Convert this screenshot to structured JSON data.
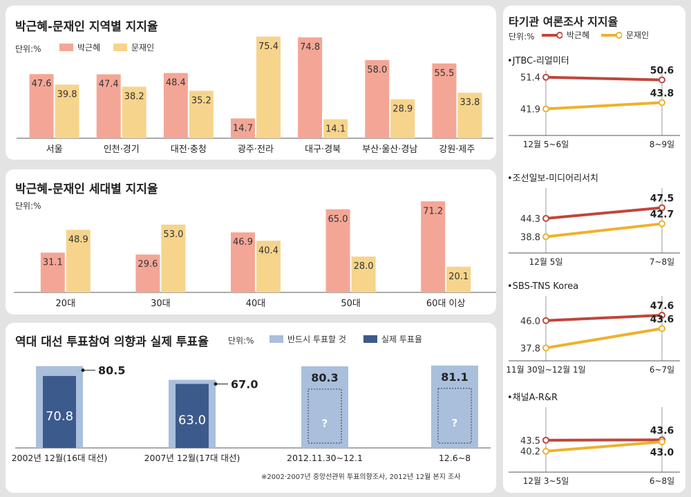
{
  "colors": {
    "park": "#f4a696",
    "moon": "#f6d48c",
    "park_line": "#c0463a",
    "moon_line": "#efb12a",
    "intent": "#a9bfdc",
    "actual": "#3d5a8c"
  },
  "regional": {
    "title": "박근혜-문재인 지역별 지지율",
    "unit": "단위:%",
    "legend": [
      "박근혜",
      "문재인"
    ]
  },
  "age": {
    "title": "박근혜-문재인 세대별 지지율",
    "unit": "단위:%"
  },
  "turnout": {
    "title": "역대 대선 투표참여 의향과 실제 투표율",
    "unit": "단위:%",
    "legend": [
      "반드시 투표할 것",
      "실제 투표율"
    ],
    "unknown_mark": "?",
    "note": "※2002·2007년 중앙선관위 투표의향조사, 2012년 12월 본지 조사"
  },
  "side": {
    "title": "타기관 여론조사 지지율",
    "unit": "단위:%",
    "legend": [
      "박근혜",
      "문재인"
    ]
  },
  "chart_data": [
    {
      "type": "bar",
      "title": "박근혜-문재인 지역별 지지율",
      "categories": [
        "서울",
        "인천·경기",
        "대전·충청",
        "광주·전라",
        "대구·경북",
        "부산·울산·경남",
        "강원·제주"
      ],
      "series": [
        {
          "name": "박근혜",
          "values": [
            47.6,
            47.4,
            48.4,
            14.7,
            74.8,
            58.0,
            55.5
          ]
        },
        {
          "name": "문재인",
          "values": [
            39.8,
            38.2,
            35.2,
            75.4,
            14.1,
            28.9,
            33.8
          ]
        }
      ],
      "ylim": [
        0,
        80
      ]
    },
    {
      "type": "bar",
      "title": "박근혜-문재인 세대별 지지율",
      "categories": [
        "20대",
        "30대",
        "40대",
        "50대",
        "60대 이상"
      ],
      "series": [
        {
          "name": "박근혜",
          "values": [
            31.1,
            29.6,
            46.9,
            65.0,
            71.2
          ]
        },
        {
          "name": "문재인",
          "values": [
            48.9,
            53.0,
            40.4,
            28.0,
            20.1
          ]
        }
      ],
      "ylim": [
        0,
        80
      ]
    },
    {
      "type": "bar",
      "title": "역대 대선 투표참여 의향과 실제 투표율",
      "categories": [
        "2002년 12월(16대 대선)",
        "2007년 12월(17대 대선)",
        "2012.11.30~12.1",
        "12.6~8"
      ],
      "series": [
        {
          "name": "반드시 투표할 것",
          "values": [
            80.5,
            67.0,
            80.3,
            81.1
          ]
        },
        {
          "name": "실제 투표율",
          "values": [
            70.8,
            63.0,
            null,
            null
          ]
        }
      ],
      "ylim": [
        0,
        85
      ]
    },
    {
      "type": "line",
      "title": "JTBC-리얼미터",
      "x": [
        "12월 5~6일",
        "8~9일"
      ],
      "series": [
        {
          "name": "박근혜",
          "values": [
            51.4,
            50.6
          ]
        },
        {
          "name": "문재인",
          "values": [
            41.9,
            43.8
          ]
        }
      ]
    },
    {
      "type": "line",
      "title": "조선일보-미디어리서치",
      "x": [
        "12월 5일",
        "7~8일"
      ],
      "series": [
        {
          "name": "박근혜",
          "values": [
            44.3,
            47.5
          ]
        },
        {
          "name": "문재인",
          "values": [
            38.8,
            42.7
          ]
        }
      ]
    },
    {
      "type": "line",
      "title": "SBS-TNS Korea",
      "x": [
        "11월 30일~12월 1일",
        "6~7일"
      ],
      "series": [
        {
          "name": "박근혜",
          "values": [
            46.0,
            47.6
          ]
        },
        {
          "name": "문재인",
          "values": [
            37.8,
            43.6
          ]
        }
      ]
    },
    {
      "type": "line",
      "title": "채널A-R&R",
      "x": [
        "12월 3~5일",
        "6~8일"
      ],
      "series": [
        {
          "name": "박근혜",
          "values": [
            43.5,
            43.6
          ]
        },
        {
          "name": "문재인",
          "values": [
            40.2,
            43.0
          ]
        }
      ]
    }
  ]
}
